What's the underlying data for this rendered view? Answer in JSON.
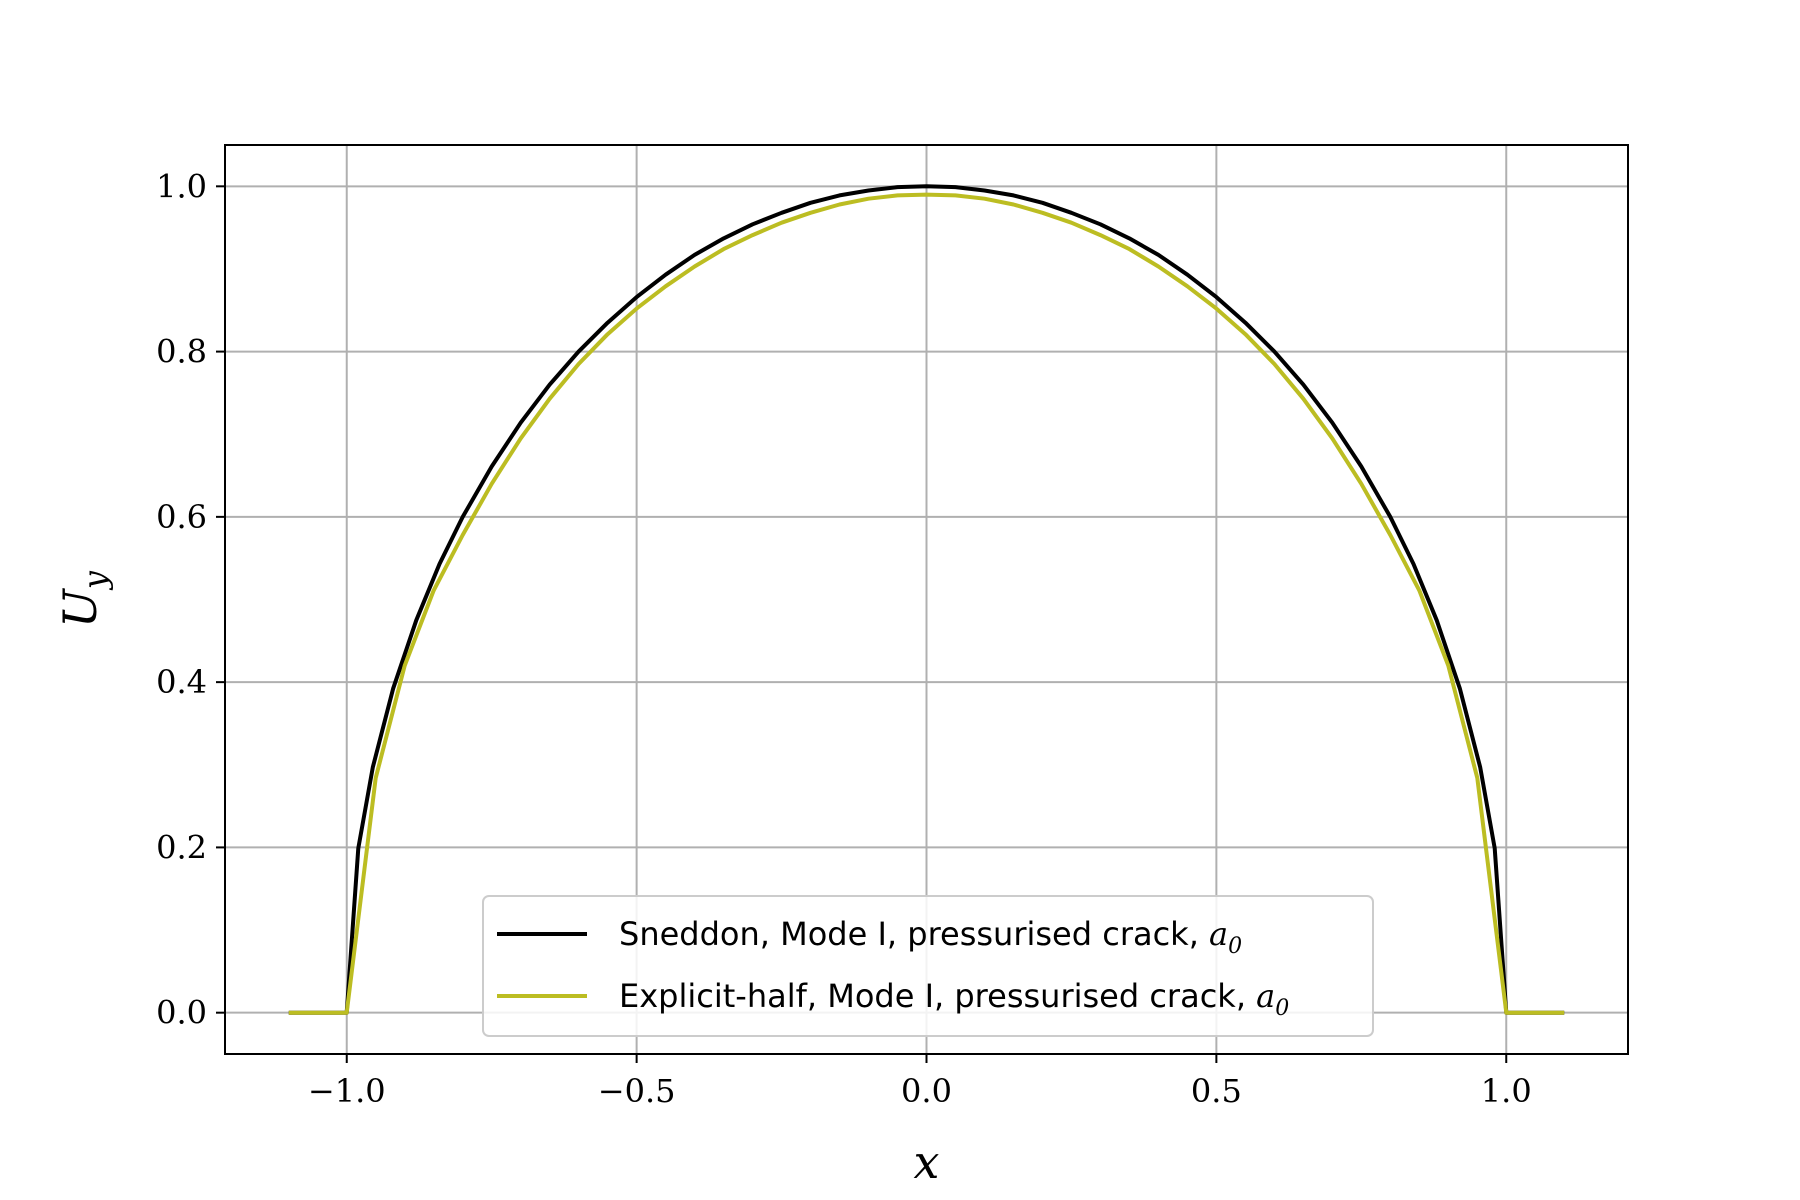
{
  "chart_data": {
    "type": "line",
    "title": "",
    "xlabel": "x",
    "ylabel": "U_y",
    "xlim": [
      -1.21,
      1.21
    ],
    "ylim": [
      -0.05,
      1.05
    ],
    "xticks": [
      -1.0,
      -0.5,
      0.0,
      0.5,
      1.0
    ],
    "xtick_labels": [
      "−1.0",
      "−0.5",
      "0.0",
      "0.5",
      "1.0"
    ],
    "yticks": [
      0.0,
      0.2,
      0.4,
      0.6,
      0.8,
      1.0
    ],
    "ytick_labels": [
      "0.0",
      "0.2",
      "0.4",
      "0.6",
      "0.8",
      "1.0"
    ],
    "grid": true,
    "legend_position": "lower-center",
    "series": [
      {
        "name": "Sneddon, Mode I, pressurised crack, a0",
        "legend_main": "Sneddon, Mode I, pressurised crack, ",
        "legend_sym": "a",
        "legend_sub": "0",
        "color": "#000000",
        "x": [
          -1.1,
          -1.0,
          -0.98,
          -0.955,
          -0.92,
          -0.88,
          -0.84,
          -0.8,
          -0.75,
          -0.7,
          -0.65,
          -0.6,
          -0.55,
          -0.5,
          -0.45,
          -0.4,
          -0.35,
          -0.3,
          -0.25,
          -0.2,
          -0.15,
          -0.1,
          -0.05,
          0.0,
          0.05,
          0.1,
          0.15,
          0.2,
          0.25,
          0.3,
          0.35,
          0.4,
          0.45,
          0.5,
          0.55,
          0.6,
          0.65,
          0.7,
          0.75,
          0.8,
          0.84,
          0.88,
          0.92,
          0.955,
          0.98,
          1.0,
          1.1
        ],
        "y": [
          0.0,
          0.0,
          0.199,
          0.297,
          0.392,
          0.475,
          0.543,
          0.6,
          0.661,
          0.714,
          0.76,
          0.8,
          0.835,
          0.866,
          0.893,
          0.917,
          0.937,
          0.954,
          0.968,
          0.98,
          0.989,
          0.995,
          0.999,
          1.0,
          0.999,
          0.995,
          0.989,
          0.98,
          0.968,
          0.954,
          0.937,
          0.917,
          0.893,
          0.866,
          0.835,
          0.8,
          0.76,
          0.714,
          0.661,
          0.6,
          0.543,
          0.475,
          0.392,
          0.297,
          0.199,
          0.0,
          0.0
        ]
      },
      {
        "name": "Explicit-half, Mode I, pressurised crack, a0",
        "legend_main": "Explicit-half, Mode I, pressurised crack, ",
        "legend_sym": "a",
        "legend_sub": "0",
        "color": "#bcbd22",
        "x": [
          -1.1,
          -1.0,
          -0.95,
          -0.9,
          -0.85,
          -0.8,
          -0.75,
          -0.7,
          -0.65,
          -0.6,
          -0.55,
          -0.5,
          -0.45,
          -0.4,
          -0.35,
          -0.3,
          -0.25,
          -0.2,
          -0.15,
          -0.1,
          -0.05,
          0.0,
          0.05,
          0.1,
          0.15,
          0.2,
          0.25,
          0.3,
          0.35,
          0.4,
          0.45,
          0.5,
          0.55,
          0.6,
          0.65,
          0.7,
          0.75,
          0.8,
          0.85,
          0.9,
          0.95,
          1.0,
          1.1
        ],
        "y": [
          0.0,
          0.0,
          0.284,
          0.42,
          0.511,
          0.578,
          0.64,
          0.695,
          0.743,
          0.785,
          0.821,
          0.852,
          0.879,
          0.903,
          0.924,
          0.941,
          0.956,
          0.968,
          0.978,
          0.985,
          0.989,
          0.99,
          0.989,
          0.985,
          0.978,
          0.968,
          0.956,
          0.941,
          0.924,
          0.903,
          0.879,
          0.852,
          0.821,
          0.785,
          0.743,
          0.695,
          0.64,
          0.578,
          0.511,
          0.42,
          0.284,
          0.0,
          0.0
        ]
      }
    ]
  }
}
